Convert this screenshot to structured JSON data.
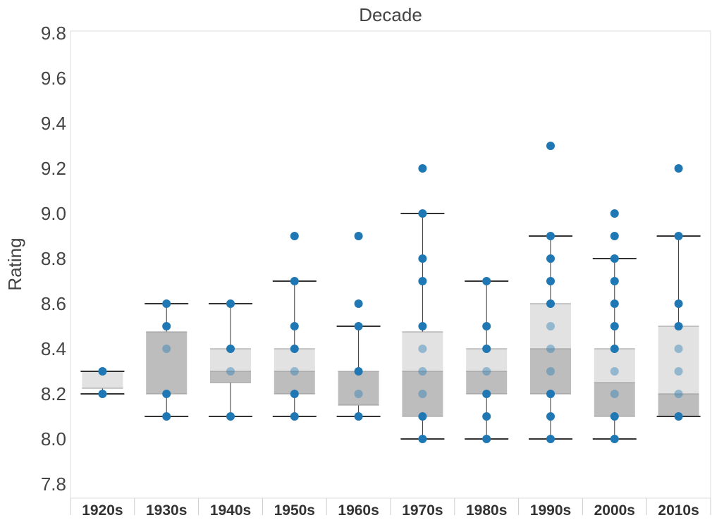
{
  "chart_data": {
    "type": "box",
    "title": "Decade",
    "xlabel": "",
    "ylabel": "Rating",
    "ylim": [
      7.75,
      9.85
    ],
    "yticks": [
      "7.8",
      "8.0",
      "8.2",
      "8.4",
      "8.6",
      "8.8",
      "9.0",
      "9.2",
      "9.4",
      "9.6",
      "9.8"
    ],
    "categories": [
      "1920s",
      "1930s",
      "1940s",
      "1950s",
      "1960s",
      "1970s",
      "1980s",
      "1990s",
      "2000s",
      "2010s"
    ],
    "boxes": [
      {
        "category": "1920s",
        "whisker_low": 8.2,
        "q1": 8.225,
        "median": 8.225,
        "q3": 8.3,
        "whisker_high": 8.3,
        "points": [
          8.2,
          8.3
        ]
      },
      {
        "category": "1930s",
        "whisker_low": 8.1,
        "q1": 8.2,
        "median": 8.475,
        "q3": 8.475,
        "whisker_high": 8.6,
        "points": [
          8.1,
          8.2,
          8.4,
          8.5,
          8.6
        ]
      },
      {
        "category": "1940s",
        "whisker_low": 8.1,
        "q1": 8.25,
        "median": 8.3,
        "q3": 8.4,
        "whisker_high": 8.6,
        "points": [
          8.1,
          8.3,
          8.4,
          8.6
        ]
      },
      {
        "category": "1950s",
        "whisker_low": 8.1,
        "q1": 8.2,
        "median": 8.3,
        "q3": 8.4,
        "whisker_high": 8.7,
        "points": [
          8.1,
          8.2,
          8.3,
          8.4,
          8.5,
          8.7,
          8.9
        ]
      },
      {
        "category": "1960s",
        "whisker_low": 8.1,
        "q1": 8.15,
        "median": 8.3,
        "q3": 8.3,
        "whisker_high": 8.5,
        "points": [
          8.1,
          8.2,
          8.3,
          8.5,
          8.6,
          8.9
        ]
      },
      {
        "category": "1970s",
        "whisker_low": 8.0,
        "q1": 8.1,
        "median": 8.3,
        "q3": 8.475,
        "whisker_high": 9.0,
        "points": [
          8.0,
          8.1,
          8.2,
          8.3,
          8.4,
          8.5,
          8.7,
          8.8,
          9.0,
          9.2
        ]
      },
      {
        "category": "1980s",
        "whisker_low": 8.0,
        "q1": 8.2,
        "median": 8.3,
        "q3": 8.4,
        "whisker_high": 8.7,
        "points": [
          8.0,
          8.1,
          8.2,
          8.3,
          8.4,
          8.5,
          8.7
        ]
      },
      {
        "category": "1990s",
        "whisker_low": 8.0,
        "q1": 8.2,
        "median": 8.4,
        "q3": 8.6,
        "whisker_high": 8.9,
        "points": [
          8.0,
          8.1,
          8.2,
          8.3,
          8.4,
          8.5,
          8.6,
          8.7,
          8.8,
          8.9,
          9.3
        ]
      },
      {
        "category": "2000s",
        "whisker_low": 8.0,
        "q1": 8.1,
        "median": 8.25,
        "q3": 8.4,
        "whisker_high": 8.8,
        "points": [
          8.0,
          8.1,
          8.2,
          8.3,
          8.4,
          8.5,
          8.6,
          8.7,
          8.8,
          8.9,
          9.0
        ]
      },
      {
        "category": "2010s",
        "whisker_low": 8.1,
        "q1": 8.1,
        "median": 8.2,
        "q3": 8.5,
        "whisker_high": 8.9,
        "points": [
          8.1,
          8.2,
          8.3,
          8.4,
          8.5,
          8.6,
          8.9,
          9.2
        ]
      }
    ],
    "grid": false,
    "legend": "none",
    "colors": {
      "point": "#1f77b4",
      "box_lower": "#bdbdbd",
      "box_upper": "#e2e2e2",
      "whisker": "#333333",
      "frame": "#dddddd"
    }
  }
}
